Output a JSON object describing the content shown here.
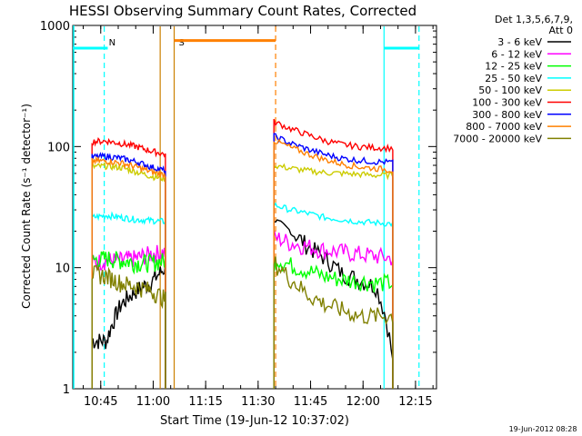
{
  "chart_data": {
    "type": "line",
    "title": "HESSI Observing Summary Count Rates, Corrected",
    "xlabel": "Start Time (19-Jun-12 10:37:02)",
    "ylabel": "Corrected Count Rate (s⁻¹ detector⁻¹)",
    "y_scale": "log",
    "ylim": [
      1,
      1000
    ],
    "xlim_minutes": [
      0,
      104
    ],
    "x_ticks": [
      {
        "label": "10:45",
        "minute": 8
      },
      {
        "label": "11:00",
        "minute": 23
      },
      {
        "label": "11:15",
        "minute": 38
      },
      {
        "label": "11:30",
        "minute": 53
      },
      {
        "label": "11:45",
        "minute": 68
      },
      {
        "label": "12:00",
        "minute": 83
      },
      {
        "label": "12:15",
        "minute": 98
      }
    ],
    "y_ticks": [
      {
        "label": "1",
        "value": 1
      },
      {
        "label": "10",
        "value": 10
      },
      {
        "label": "100",
        "value": 100
      },
      {
        "label": "1000",
        "value": 1000
      }
    ],
    "legend_header": [
      "Det 1,3,5,6,7,9,",
      "Att 0"
    ],
    "legend_position": "right",
    "footer": "19-Jun-2012 08:28",
    "segments": [
      [
        5.5,
        26.5
      ],
      [
        57.5,
        91.5
      ]
    ],
    "series": [
      {
        "name": "3 - 6 keV",
        "color": "#000000",
        "values": [
          [
            2.5,
            2.5,
            5,
            6.5,
            7.5,
            10
          ],
          [
            25,
            20,
            15,
            12,
            9,
            8,
            7,
            1.6
          ]
        ]
      },
      {
        "name": "6 - 12 keV",
        "color": "#ff00ff",
        "values": [
          [
            11,
            11.5,
            11.5,
            12,
            13,
            13.5
          ],
          [
            18,
            16,
            15,
            14,
            13.5,
            13,
            12.5,
            12
          ]
        ]
      },
      {
        "name": "12 - 25 keV",
        "color": "#00ff00",
        "values": [
          [
            11.5,
            12,
            11.5,
            11,
            11,
            11.5
          ],
          [
            12,
            10.5,
            9.5,
            8.5,
            8,
            7.8,
            7.5,
            7.5
          ]
        ]
      },
      {
        "name": "25 - 50 keV",
        "color": "#00ffff",
        "values": [
          [
            26,
            27,
            26,
            25,
            24.5,
            24
          ],
          [
            33,
            30,
            28,
            26,
            25,
            24,
            23.5,
            23
          ]
        ]
      },
      {
        "name": "50 - 100 keV",
        "color": "#cccc00",
        "values": [
          [
            68,
            69,
            67,
            62,
            57,
            54
          ],
          [
            70,
            66,
            63,
            61,
            60,
            59,
            58,
            58
          ]
        ]
      },
      {
        "name": "100 - 300 keV",
        "color": "#ff0000",
        "values": [
          [
            110,
            111,
            106,
            100,
            92,
            86
          ],
          [
            160,
            140,
            125,
            112,
            104,
            100,
            98,
            97
          ]
        ]
      },
      {
        "name": "300 - 800 keV",
        "color": "#0000ff",
        "values": [
          [
            82,
            83,
            80,
            75,
            68,
            63
          ],
          [
            122,
            106,
            95,
            86,
            80,
            77,
            75,
            74
          ]
        ]
      },
      {
        "name": "800 - 7000 keV",
        "color": "#ff8000",
        "values": [
          [
            76,
            76,
            73,
            68,
            62,
            58
          ],
          [
            112,
            98,
            87,
            78,
            72,
            68,
            66,
            64
          ]
        ]
      },
      {
        "name": "7000 - 20000 keV",
        "color": "#808000",
        "values": [
          [
            9,
            8.5,
            7.5,
            7,
            6.5,
            5.5
          ],
          [
            11,
            8,
            6,
            5,
            4.5,
            4,
            4,
            4
          ]
        ]
      }
    ],
    "annotations": [
      {
        "label": "N",
        "color": "#00ffff",
        "minute": 9,
        "dashed": true
      },
      {
        "label": "",
        "color": "#00ffff",
        "minute": 89,
        "dashed": false
      },
      {
        "label": "",
        "color": "#00ffff",
        "minute": 99,
        "dashed": true
      },
      {
        "label": "S",
        "color": "#cc8000",
        "minute": 29,
        "dashed": false
      },
      {
        "label": "",
        "color": "#cc8000",
        "minute": 25,
        "dashed": false
      },
      {
        "label": "",
        "color": "#ff8000",
        "minute": 58,
        "dashed": true
      }
    ],
    "bars": [
      {
        "color": "#00ffff",
        "from_minute": 0,
        "to_minute": 10,
        "value": 650
      },
      {
        "color": "#00ffff",
        "from_minute": 89,
        "to_minute": 99,
        "value": 650
      },
      {
        "color": "#ff8000",
        "from_minute": 29,
        "to_minute": 58,
        "value": 750
      }
    ]
  }
}
